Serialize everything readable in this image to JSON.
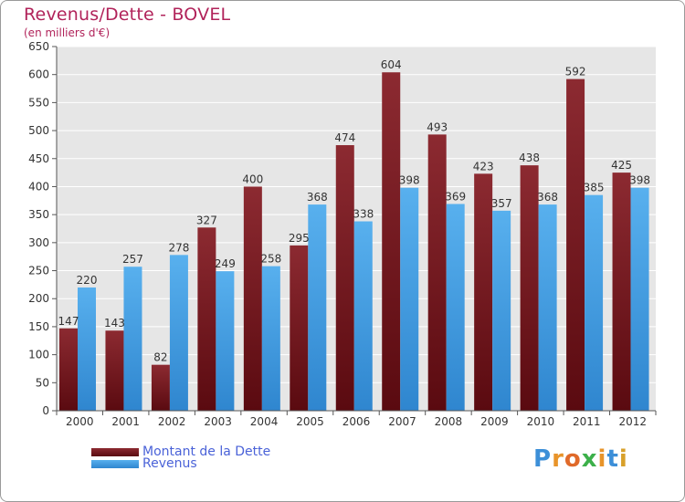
{
  "chart_data": {
    "type": "bar",
    "title": "Revenus/Dette - BOVEL",
    "subtitle": "(en milliers d'€)",
    "categories": [
      "2000",
      "2001",
      "2002",
      "2003",
      "2004",
      "2005",
      "2006",
      "2007",
      "2008",
      "2009",
      "2010",
      "2011",
      "2012"
    ],
    "series": [
      {
        "name": "Montant de la Dette",
        "color": "#7a1a22",
        "values": [
          147,
          143,
          82,
          327,
          400,
          295,
          474,
          604,
          493,
          423,
          438,
          592,
          425
        ]
      },
      {
        "name": "Revenus",
        "color": "#4aa3e6",
        "values": [
          220,
          257,
          278,
          249,
          258,
          368,
          338,
          398,
          369,
          357,
          368,
          385,
          398
        ]
      }
    ],
    "ylim": [
      0,
      650
    ],
    "yticks": [
      0,
      50,
      100,
      150,
      200,
      250,
      300,
      350,
      400,
      450,
      500,
      550,
      600,
      650
    ],
    "grid": true,
    "legend_position": "bottom-left"
  },
  "brand": {
    "letters": [
      "P",
      "r",
      "o",
      "x",
      "i",
      "t",
      "i"
    ],
    "colors": [
      "#3c8fd8",
      "#e8942a",
      "#e06a2a",
      "#3cb04a",
      "#e8942a",
      "#3c8fd8",
      "#d8a02a"
    ]
  }
}
